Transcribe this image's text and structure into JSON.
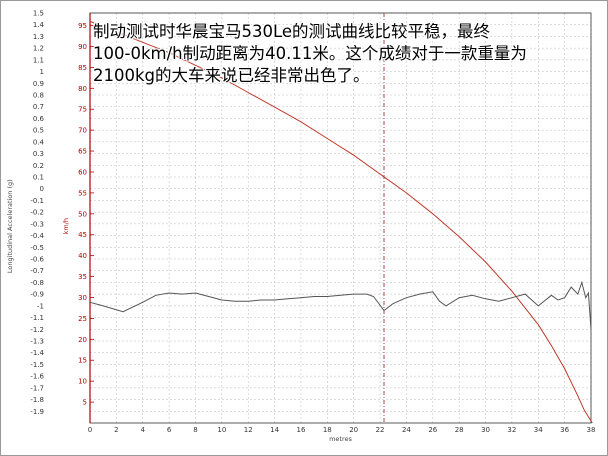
{
  "caption": {
    "line1": "制动测试时华晨宝马530Le的测试曲线比较平稳，最终",
    "line2": "100-0km/h制动距离为40.11米。这个成绩对于一款重量为",
    "line3": "2100kg的大车来说已经非常出色了。"
  },
  "chart_data": {
    "type": "line",
    "xlabel": "metres",
    "ylabel_left": "Longitudinal Acceleration (g)",
    "ylabel_right": "km/h",
    "x_ticks": [
      0,
      2,
      4,
      6,
      8,
      10,
      12,
      14,
      16,
      18,
      20,
      22,
      24,
      26,
      28,
      30,
      32,
      34,
      36,
      38
    ],
    "xlim": [
      0,
      38
    ],
    "y_left_ticks": [
      "1.5",
      "1.4",
      "1.3",
      "1.2",
      "1.1",
      "1",
      "0.9",
      "0.8",
      "0.7",
      "0.6",
      "0.5",
      "0.4",
      "0.3",
      "0.2",
      "0.1",
      "0",
      "-0.1",
      "-0.2",
      "-0.3",
      "-0.4",
      "-0.5",
      "-0.6",
      "-0.7",
      "-0.8",
      "-0.9",
      "-1",
      "-1.1",
      "-1.2",
      "-1.3",
      "-1.4",
      "-1.5",
      "-1.6",
      "-1.7",
      "-1.8",
      "-1.9"
    ],
    "y_right_ticks": [
      95,
      90,
      85,
      80,
      75,
      70,
      65,
      60,
      55,
      50,
      45,
      40,
      35,
      30,
      25,
      20,
      15,
      10,
      5
    ],
    "y_left_lim": [
      -2.0,
      1.5
    ],
    "y_right_lim": [
      0,
      98
    ],
    "grid": true,
    "marker_x": 22.3,
    "series": [
      {
        "axis": "right",
        "color": "#c0392b",
        "x": [
          0,
          2,
          4,
          6,
          8,
          10,
          12,
          14,
          16,
          18,
          20,
          22,
          24,
          26,
          28,
          30,
          32,
          34,
          35,
          36,
          37,
          37.5,
          38,
          38.1
        ],
        "y": [
          96,
          93.5,
          91,
          88.5,
          85.5,
          82.5,
          79,
          75.5,
          72,
          68,
          64,
          59.5,
          55,
          50,
          44.5,
          38.5,
          31.5,
          23.5,
          18.5,
          13,
          6.5,
          3,
          0.5,
          0
        ]
      },
      {
        "axis": "left",
        "color": "#555555",
        "x": [
          0,
          1,
          2.5,
          4,
          5,
          6,
          7,
          8,
          9,
          10,
          11,
          12,
          13,
          14,
          15,
          16,
          17,
          18,
          19,
          20,
          21,
          21.5,
          22.3,
          23,
          24,
          25,
          26,
          26.5,
          27,
          28,
          29,
          30,
          31,
          32,
          33,
          34,
          35,
          35.5,
          36,
          36.5,
          37,
          37.3,
          37.6,
          37.8,
          38
        ],
        "y": [
          -0.97,
          -1.0,
          -1.05,
          -0.97,
          -0.91,
          -0.89,
          -0.9,
          -0.89,
          -0.92,
          -0.95,
          -0.96,
          -0.96,
          -0.95,
          -0.95,
          -0.94,
          -0.93,
          -0.92,
          -0.92,
          -0.91,
          -0.9,
          -0.9,
          -0.92,
          -1.04,
          -0.98,
          -0.93,
          -0.9,
          -0.88,
          -0.96,
          -1.0,
          -0.93,
          -0.91,
          -0.94,
          -0.96,
          -0.93,
          -0.9,
          -1.0,
          -0.91,
          -0.95,
          -0.93,
          -0.84,
          -0.9,
          -0.8,
          -0.93,
          -0.89,
          -1.2
        ]
      }
    ]
  }
}
